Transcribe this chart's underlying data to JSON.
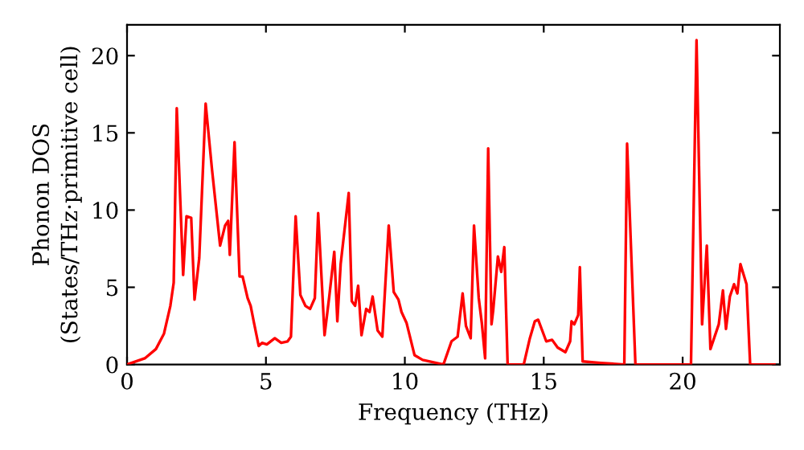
{
  "chart_data": {
    "type": "line",
    "xlabel": "Frequency (THz)",
    "ylabel": "Phonon DOS\n(States/THz·primitive cell)",
    "xlim": [
      0,
      23.5
    ],
    "ylim": [
      0,
      22
    ],
    "xticks": [
      0,
      5,
      10,
      15,
      20
    ],
    "yticks": [
      0,
      5,
      10,
      15,
      20
    ],
    "grid": false,
    "legend": false,
    "marker": "none",
    "line_style": "solid",
    "series": [
      {
        "color": "#ff0000",
        "x": [
          0,
          0.64,
          1.04,
          1.33,
          1.56,
          1.68,
          1.79,
          2.02,
          2.14,
          2.31,
          2.43,
          2.6,
          2.83,
          3.06,
          3.35,
          3.53,
          3.64,
          3.7,
          3.87,
          4.05,
          4.16,
          4.34,
          4.45,
          4.57,
          4.74,
          4.86,
          5.03,
          5.32,
          5.55,
          5.78,
          5.9,
          6.07,
          6.24,
          6.42,
          6.59,
          6.76,
          6.88,
          7.11,
          7.28,
          7.46,
          7.57,
          7.69,
          7.98,
          8.09,
          8.21,
          8.32,
          8.44,
          8.61,
          8.73,
          8.84,
          9.02,
          9.19,
          9.42,
          9.6,
          9.77,
          9.88,
          10.06,
          10.35,
          10.64,
          11.39,
          11.68,
          11.9,
          12.08,
          12.2,
          12.37,
          12.49,
          12.66,
          12.77,
          12.89,
          13.0,
          13.12,
          13.18,
          13.35,
          13.47,
          13.58,
          13.7,
          14.28,
          14.5,
          14.68,
          14.8,
          15.09,
          15.3,
          15.5,
          15.78,
          15.95,
          16.0,
          16.1,
          16.24,
          16.3,
          16.4,
          17.05,
          17.9,
          18.0,
          18.3,
          20.3,
          20.5,
          20.7,
          20.87,
          21.0,
          21.3,
          21.45,
          21.56,
          21.7,
          21.85,
          21.97,
          22.08,
          22.3,
          22.43,
          23.3
        ],
        "values": [
          0,
          0.4,
          1.0,
          2.0,
          3.8,
          5.3,
          16.6,
          5.8,
          9.6,
          9.5,
          4.2,
          6.9,
          16.9,
          12.6,
          7.7,
          9.0,
          9.3,
          7.1,
          14.4,
          5.7,
          5.7,
          4.3,
          3.8,
          2.7,
          1.2,
          1.4,
          1.3,
          1.7,
          1.4,
          1.5,
          1.8,
          9.6,
          4.5,
          3.8,
          3.6,
          4.3,
          9.8,
          1.9,
          4.4,
          7.3,
          2.8,
          6.5,
          11.1,
          4.1,
          3.8,
          5.1,
          1.9,
          3.6,
          3.4,
          4.4,
          2.2,
          1.8,
          9.0,
          4.7,
          4.2,
          3.4,
          2.7,
          0.6,
          0.3,
          0,
          1.5,
          1.8,
          4.6,
          2.5,
          1.7,
          9.0,
          4.3,
          2.7,
          0.4,
          14.0,
          2.6,
          3.5,
          7.0,
          6.0,
          7.6,
          0,
          0,
          1.7,
          2.8,
          2.9,
          1.5,
          1.6,
          1.1,
          0.8,
          1.5,
          2.8,
          2.6,
          3.2,
          6.3,
          0.2,
          0.1,
          0,
          14.3,
          0,
          0,
          21.0,
          2.6,
          7.7,
          1.0,
          2.6,
          4.8,
          2.3,
          4.4,
          5.2,
          4.6,
          6.5,
          5.2,
          0,
          0
        ]
      }
    ]
  }
}
